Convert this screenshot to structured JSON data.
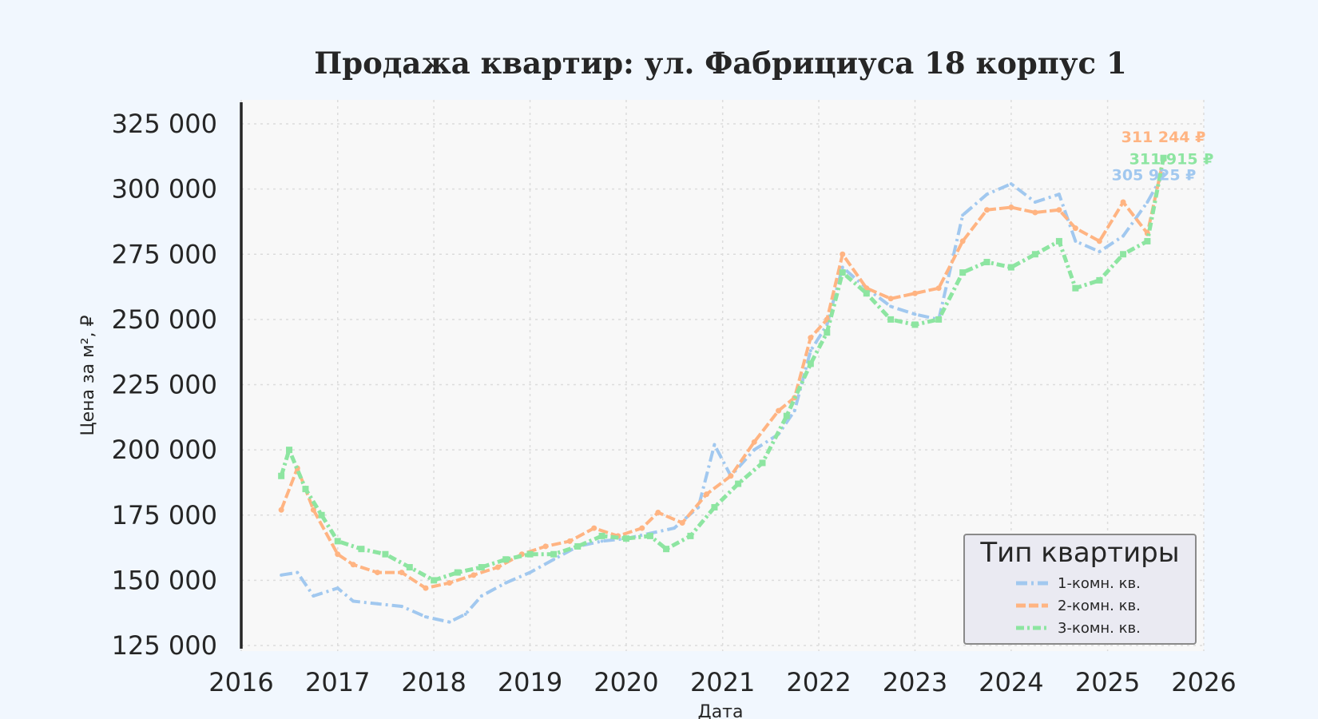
{
  "chart_data": {
    "type": "line",
    "title": "Продажа квартир: ул. Фабрициуса 18 корпус 1",
    "xlabel": "Дата",
    "ylabel": "Цена за м², ₽",
    "xlim": [
      "2016-01-01",
      "2026-01-01"
    ],
    "ylim": [
      125000,
      325000
    ],
    "x_ticks": [
      "2016",
      "2017",
      "2018",
      "2019",
      "2020",
      "2021",
      "2022",
      "2023",
      "2024",
      "2025",
      "2026"
    ],
    "y_ticks": [
      "125 000",
      "150 000",
      "175 000",
      "200 000",
      "225 000",
      "250 000",
      "275 000",
      "300 000",
      "325 000"
    ],
    "grid": true,
    "legend": {
      "title": "Тип квартиры",
      "placement": "bottom-right"
    },
    "series": [
      {
        "name": "1-комн. кв.",
        "color": "#a1c8ef",
        "end_label": "305 925 ₽",
        "points": [
          [
            "2016-06-01",
            152000
          ],
          [
            "2016-08-01",
            153000
          ],
          [
            "2016-10-01",
            144000
          ],
          [
            "2017-01-01",
            147000
          ],
          [
            "2017-03-01",
            142000
          ],
          [
            "2017-06-01",
            141000
          ],
          [
            "2017-09-01",
            140000
          ],
          [
            "2017-12-01",
            136000
          ],
          [
            "2018-03-01",
            134000
          ],
          [
            "2018-05-01",
            137000
          ],
          [
            "2018-07-01",
            144000
          ],
          [
            "2018-10-01",
            149000
          ],
          [
            "2019-01-01",
            153000
          ],
          [
            "2019-04-01",
            158000
          ],
          [
            "2019-07-01",
            163000
          ],
          [
            "2019-10-01",
            165000
          ],
          [
            "2020-01-01",
            166000
          ],
          [
            "2020-04-01",
            168000
          ],
          [
            "2020-07-01",
            170000
          ],
          [
            "2020-10-01",
            178000
          ],
          [
            "2020-12-01",
            202000
          ],
          [
            "2021-02-01",
            190000
          ],
          [
            "2021-05-01",
            200000
          ],
          [
            "2021-08-01",
            206000
          ],
          [
            "2021-10-01",
            215000
          ],
          [
            "2021-12-01",
            238000
          ],
          [
            "2022-02-01",
            248000
          ],
          [
            "2022-04-01",
            270000
          ],
          [
            "2022-07-01",
            262000
          ],
          [
            "2022-10-01",
            255000
          ],
          [
            "2023-01-01",
            252000
          ],
          [
            "2023-04-01",
            250000
          ],
          [
            "2023-07-01",
            290000
          ],
          [
            "2023-10-01",
            298000
          ],
          [
            "2024-01-01",
            302000
          ],
          [
            "2024-04-01",
            295000
          ],
          [
            "2024-07-01",
            298000
          ],
          [
            "2024-09-01",
            280000
          ],
          [
            "2024-12-01",
            276000
          ],
          [
            "2025-03-01",
            282000
          ],
          [
            "2025-06-01",
            295000
          ],
          [
            "2025-08-01",
            305925
          ]
        ]
      },
      {
        "name": "2-комн. кв.",
        "color": "#ffb482",
        "end_label": "311 244 ₽",
        "points": [
          [
            "2016-06-01",
            177000
          ],
          [
            "2016-08-01",
            193000
          ],
          [
            "2016-10-01",
            177000
          ],
          [
            "2017-01-01",
            160000
          ],
          [
            "2017-03-01",
            156000
          ],
          [
            "2017-06-01",
            153000
          ],
          [
            "2017-09-01",
            153000
          ],
          [
            "2017-12-01",
            147000
          ],
          [
            "2018-03-01",
            149000
          ],
          [
            "2018-06-01",
            152000
          ],
          [
            "2018-09-01",
            155000
          ],
          [
            "2018-12-01",
            160000
          ],
          [
            "2019-03-01",
            163000
          ],
          [
            "2019-06-01",
            165000
          ],
          [
            "2019-09-01",
            170000
          ],
          [
            "2019-12-01",
            167000
          ],
          [
            "2020-03-01",
            170000
          ],
          [
            "2020-05-01",
            176000
          ],
          [
            "2020-08-01",
            172000
          ],
          [
            "2020-11-01",
            183000
          ],
          [
            "2021-02-01",
            190000
          ],
          [
            "2021-05-01",
            203000
          ],
          [
            "2021-08-01",
            215000
          ],
          [
            "2021-10-01",
            220000
          ],
          [
            "2021-12-01",
            243000
          ],
          [
            "2022-02-01",
            250000
          ],
          [
            "2022-04-01",
            275000
          ],
          [
            "2022-07-01",
            262000
          ],
          [
            "2022-10-01",
            258000
          ],
          [
            "2023-01-01",
            260000
          ],
          [
            "2023-04-01",
            262000
          ],
          [
            "2023-07-01",
            280000
          ],
          [
            "2023-10-01",
            292000
          ],
          [
            "2024-01-01",
            293000
          ],
          [
            "2024-04-01",
            291000
          ],
          [
            "2024-07-01",
            292000
          ],
          [
            "2024-09-01",
            285000
          ],
          [
            "2024-12-01",
            280000
          ],
          [
            "2025-03-01",
            295000
          ],
          [
            "2025-06-01",
            283000
          ],
          [
            "2025-08-01",
            311244
          ]
        ]
      },
      {
        "name": "3-комн. кв.",
        "color": "#8de5a1",
        "end_label": "311 915 ₽",
        "points": [
          [
            "2016-06-01",
            190000
          ],
          [
            "2016-07-01",
            200000
          ],
          [
            "2016-09-01",
            185000
          ],
          [
            "2016-11-01",
            175000
          ],
          [
            "2017-01-01",
            165000
          ],
          [
            "2017-04-01",
            162000
          ],
          [
            "2017-07-01",
            160000
          ],
          [
            "2017-10-01",
            155000
          ],
          [
            "2018-01-01",
            150000
          ],
          [
            "2018-04-01",
            153000
          ],
          [
            "2018-07-01",
            155000
          ],
          [
            "2018-10-01",
            158000
          ],
          [
            "2019-01-01",
            160000
          ],
          [
            "2019-04-01",
            160000
          ],
          [
            "2019-07-01",
            163000
          ],
          [
            "2019-10-01",
            167000
          ],
          [
            "2020-01-01",
            166000
          ],
          [
            "2020-04-01",
            167000
          ],
          [
            "2020-06-01",
            162000
          ],
          [
            "2020-09-01",
            167000
          ],
          [
            "2020-12-01",
            178000
          ],
          [
            "2021-03-01",
            187000
          ],
          [
            "2021-06-01",
            195000
          ],
          [
            "2021-09-01",
            213000
          ],
          [
            "2021-12-01",
            233000
          ],
          [
            "2022-02-01",
            245000
          ],
          [
            "2022-04-01",
            268000
          ],
          [
            "2022-07-01",
            260000
          ],
          [
            "2022-10-01",
            250000
          ],
          [
            "2023-01-01",
            248000
          ],
          [
            "2023-04-01",
            250000
          ],
          [
            "2023-07-01",
            268000
          ],
          [
            "2023-10-01",
            272000
          ],
          [
            "2024-01-01",
            270000
          ],
          [
            "2024-04-01",
            275000
          ],
          [
            "2024-07-01",
            280000
          ],
          [
            "2024-09-01",
            262000
          ],
          [
            "2024-12-01",
            265000
          ],
          [
            "2025-03-01",
            275000
          ],
          [
            "2025-06-01",
            280000
          ],
          [
            "2025-08-01",
            311915
          ]
        ]
      }
    ]
  }
}
